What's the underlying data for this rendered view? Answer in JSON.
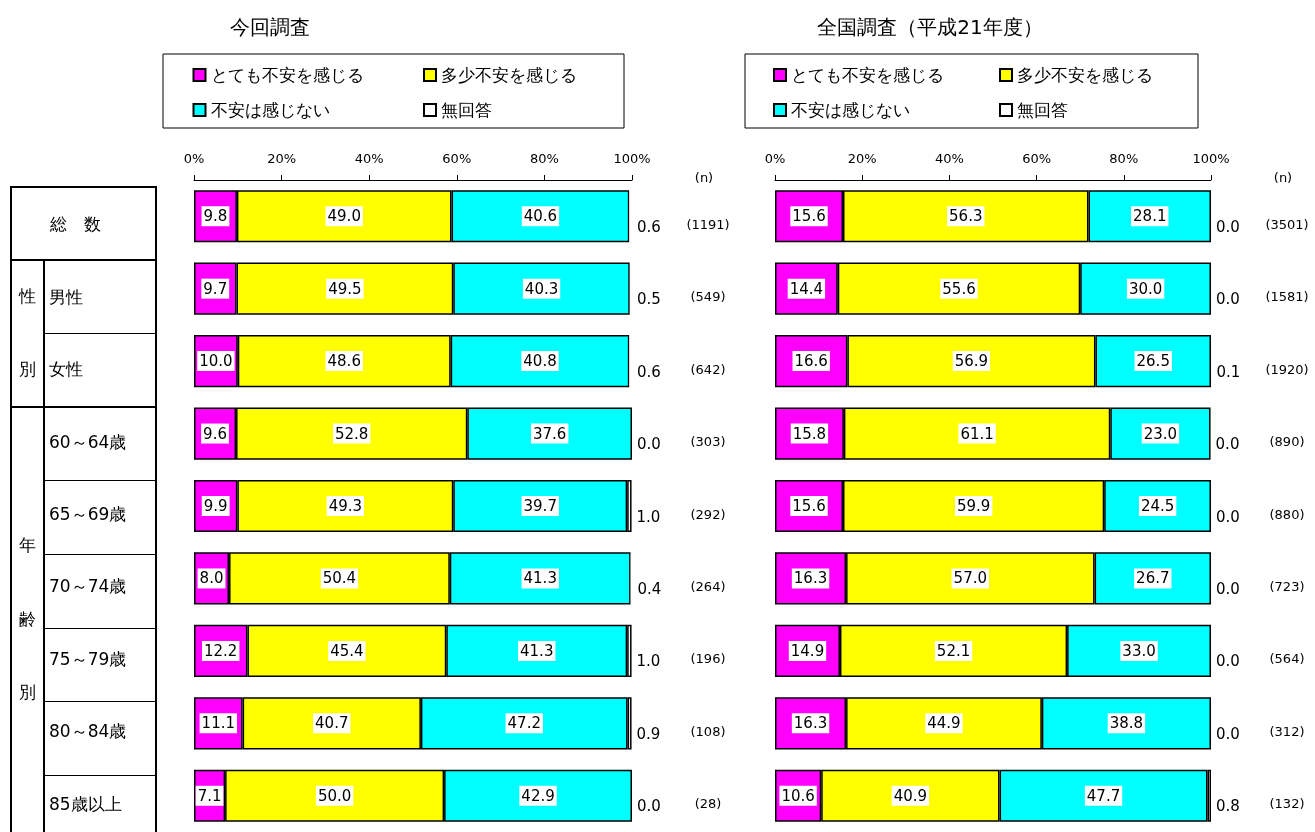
{
  "chart_data": [
    {
      "type": "bar",
      "orientation": "horizontal",
      "stacked": true,
      "title": "今回調査",
      "categories": [
        "総　数",
        "男性",
        "女性",
        "60～64歳",
        "65～69歳",
        "70～74歳",
        "75～79歳",
        "80～84歳",
        "85歳以上"
      ],
      "series": [
        {
          "name": "とても不安を感じる",
          "color": "#ff00ff",
          "values": [
            9.8,
            9.7,
            10.0,
            9.6,
            9.9,
            8.0,
            12.2,
            11.1,
            7.1
          ],
          "value_labels": [
            "9.8",
            "9.7",
            "10.0",
            "9.6",
            "9.9",
            "8.0",
            "12.2",
            "11.1",
            "7.1"
          ]
        },
        {
          "name": "多少不安を感じる",
          "color": "#ffff00",
          "values": [
            49.0,
            49.5,
            48.6,
            52.8,
            49.3,
            50.4,
            45.4,
            40.7,
            50.0
          ],
          "value_labels": [
            "49.0",
            "49.5",
            "48.6",
            "52.8",
            "49.3",
            "50.4",
            "45.4",
            "40.7",
            "50.0"
          ]
        },
        {
          "name": "不安は感じない",
          "color": "#00ffff",
          "values": [
            40.6,
            40.3,
            40.8,
            37.6,
            39.7,
            41.3,
            41.3,
            47.2,
            42.9
          ],
          "value_labels": [
            "40.6",
            "40.3",
            "40.8",
            "37.6",
            "39.7",
            "41.3",
            "41.3",
            "47.2",
            "42.9"
          ]
        },
        {
          "name": "無回答",
          "color": "#ffffff",
          "values": [
            0.6,
            0.5,
            0.6,
            0.0,
            1.0,
            0.4,
            1.0,
            0.9,
            0.0
          ],
          "value_labels": [
            "0.6",
            "0.5",
            "0.6",
            "0.0",
            "1.0",
            "0.4",
            "1.0",
            "0.9",
            "0.0"
          ]
        }
      ],
      "xlim": [
        0,
        100
      ],
      "xticks": [
        {
          "value": 0,
          "label": "0%"
        },
        {
          "value": 20,
          "label": "20%"
        },
        {
          "value": 40,
          "label": "40%"
        },
        {
          "value": 60,
          "label": "60%"
        },
        {
          "value": 80,
          "label": "80%"
        },
        {
          "value": 100,
          "label": "100%"
        }
      ],
      "legend": "top",
      "annotations": [
        "(n)",
        "(1191)",
        "(549)",
        "(642)",
        "(303)",
        "(292)",
        "(264)",
        "(196)",
        "(108)",
        "(28)",
        "性別",
        "年齢別"
      ]
    },
    {
      "type": "bar",
      "orientation": "horizontal",
      "stacked": true,
      "title": "全国調査（平成21年度）",
      "categories": [
        null,
        null,
        null,
        null,
        null,
        null,
        null,
        null,
        null
      ],
      "series": [
        {
          "name": "とても不安を感じる",
          "color": "#ff00ff",
          "values": [
            15.6,
            14.4,
            16.6,
            15.8,
            15.6,
            16.3,
            14.9,
            16.3,
            10.6
          ],
          "value_labels": [
            "15.6",
            "14.4",
            "16.6",
            "15.8",
            "15.6",
            "16.3",
            "14.9",
            "16.3",
            "10.6"
          ]
        },
        {
          "name": "多少不安を感じる",
          "color": "#ffff00",
          "values": [
            56.3,
            55.6,
            56.9,
            61.1,
            59.9,
            57.0,
            52.1,
            44.9,
            40.9
          ],
          "value_labels": [
            "56.3",
            "55.6",
            "56.9",
            "61.1",
            "59.9",
            "57.0",
            "52.1",
            "44.9",
            "40.9"
          ]
        },
        {
          "name": "不安は感じない",
          "color": "#00ffff",
          "values": [
            28.1,
            30.0,
            26.5,
            23.0,
            24.5,
            26.7,
            33.0,
            38.8,
            47.7
          ],
          "value_labels": [
            "28.1",
            "30.0",
            "26.5",
            "23.0",
            "24.5",
            "26.7",
            "33.0",
            "38.8",
            "47.7"
          ]
        },
        {
          "name": "無回答",
          "color": "#ffffff",
          "values": [
            0.0,
            0.0,
            0.1,
            0.0,
            0.0,
            0.0,
            0.0,
            0.0,
            0.8
          ],
          "value_labels": [
            "0.0",
            "0.0",
            "0.1",
            "0.0",
            "0.0",
            "0.0",
            "0.0",
            "0.0",
            "0.8"
          ]
        }
      ],
      "xlim": [
        0,
        100
      ],
      "xticks": [
        {
          "value": 0,
          "label": "0%"
        },
        {
          "value": 20,
          "label": "20%"
        },
        {
          "value": 40,
          "label": "40%"
        },
        {
          "value": 60,
          "label": "60%"
        },
        {
          "value": 80,
          "label": "80%"
        },
        {
          "value": 100,
          "label": "100%"
        }
      ],
      "legend": "top",
      "tick_labels": "x",
      "annotations": [
        "(n)",
        "(3501)",
        "(1581)",
        "(1920)",
        "(890)",
        "(880)",
        "(723)",
        "(564)",
        "(312)",
        "(132)"
      ]
    }
  ]
}
